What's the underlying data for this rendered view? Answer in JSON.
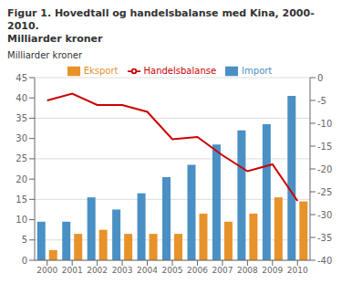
{
  "chart_data": {
    "type": "bar",
    "title": "Figur 1. Hovedtall og handelsbalanse med Kina, 2000-2010.",
    "subtitle": "Milliarder kroner",
    "ylabel": "Milliarder kroner",
    "categories": [
      "2000",
      "2001",
      "2002",
      "2003",
      "2004",
      "2005",
      "2006",
      "2007",
      "2008",
      "2009",
      "2010"
    ],
    "series": [
      {
        "name": "Import",
        "type": "bar",
        "color": "#4a90c4",
        "values": [
          9.5,
          9.5,
          15.5,
          12.5,
          16.5,
          20.5,
          23.5,
          28.5,
          32.0,
          33.5,
          40.5
        ]
      },
      {
        "name": "Eksport",
        "type": "bar",
        "color": "#e8922a",
        "values": [
          2.5,
          6.5,
          7.5,
          6.5,
          6.5,
          6.5,
          11.5,
          9.5,
          11.5,
          15.5,
          14.5
        ]
      },
      {
        "name": "Handelsbalanse",
        "type": "line",
        "axis": "y2",
        "color": "#cc0000",
        "values": [
          -5.0,
          -3.5,
          -6.0,
          -6.0,
          -7.5,
          -13.5,
          -13.0,
          -17.0,
          -20.5,
          -19.0,
          -27.0
        ]
      }
    ],
    "ylim": [
      0,
      45
    ],
    "yticks": [
      0,
      5,
      10,
      15,
      20,
      25,
      30,
      35,
      40,
      45
    ],
    "y2lim": [
      -40,
      0
    ],
    "y2ticks": [
      -40,
      -35,
      -30,
      -25,
      -20,
      -15,
      -10,
      -5,
      0
    ],
    "grid": true,
    "legend": "top"
  }
}
